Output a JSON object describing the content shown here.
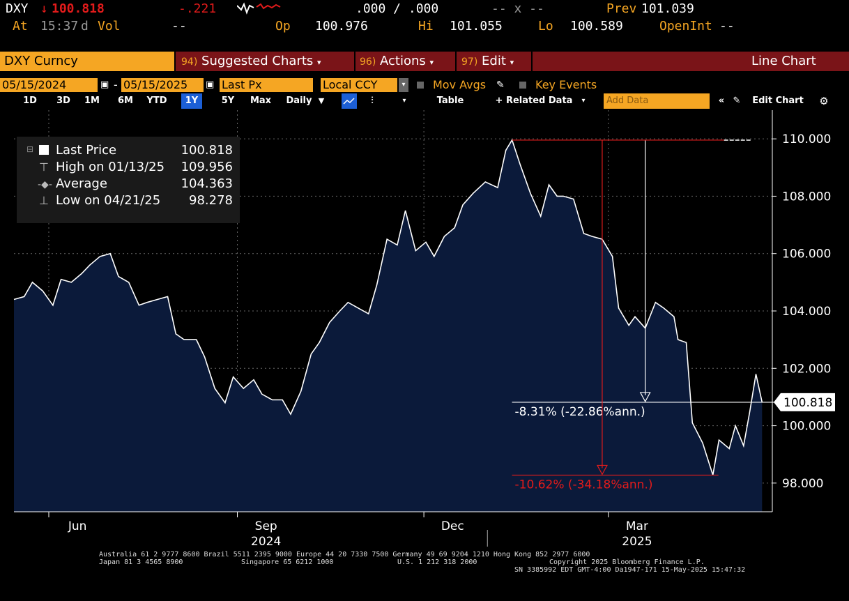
{
  "header": {
    "ticker": "DXY",
    "last_price": "100.818",
    "change": "-.221",
    "bid_ask": ".000 / .000",
    "bid_ask_size": "-- x --",
    "prev_label": "Prev",
    "prev_value": "101.039",
    "at_label": "At",
    "time": "15:37",
    "time_suffix": "d",
    "vol_label": "Vol",
    "vol_value": "--",
    "open_label": "Op",
    "open_value": "100.976",
    "hi_label": "Hi",
    "hi_value": "101.055",
    "lo_label": "Lo",
    "lo_value": "100.589",
    "openint_label": "OpenInt",
    "openint_value": "--"
  },
  "menubar": {
    "security": "DXY Curncy",
    "suggested_num": "94)",
    "suggested": "Suggested Charts",
    "actions_num": "96)",
    "actions": "Actions",
    "edit_num": "97)",
    "edit": "Edit",
    "chart_type": "Line Chart"
  },
  "settings": {
    "start_date": "05/15/2024",
    "date_sep": "-",
    "end_date": "05/15/2025",
    "field": "Last Px",
    "currency": "Local CCY",
    "mov_avgs": "Mov Avgs",
    "key_events": "Key Events"
  },
  "toolbar": {
    "ranges": [
      "1D",
      "3D",
      "1M",
      "6M",
      "YTD",
      "1Y",
      "5Y",
      "Max"
    ],
    "active_range": "1Y",
    "period": "Daily",
    "table": "Table",
    "related": "+ Related Data",
    "add_data_placeholder": "Add Data",
    "edit_chart": "Edit Chart"
  },
  "legend": {
    "last_label": "Last Price",
    "last_value": "100.818",
    "high_label": "High on 01/13/25",
    "high_value": "109.956",
    "avg_label": "Average",
    "avg_value": "104.363",
    "low_label": "Low on 04/21/25",
    "low_value": "98.278"
  },
  "annotations": {
    "white_pct": "-8.31% (-22.86%ann.)",
    "red_pct": "-10.62% (-34.18%ann.)"
  },
  "footer": {
    "line1": "Australia 61 2 9777 8600 Brazil 5511 2395 9000 Europe 44 20 7330 7500 Germany 49 69 9204 1210 Hong Kong 852 2977 6000",
    "line2a": "Japan 81 3 4565 8900",
    "line2b": "Singapore 65 6212 1000",
    "line2c": "U.S. 1 212 318 2000",
    "line2d": "Copyright 2025 Bloomberg Finance L.P.",
    "line3": "SN 3385992 EDT  GMT-4:00 Da1947-171 15-May-2025 15:47:32"
  },
  "chart_data": {
    "type": "area",
    "title": "",
    "ylim": [
      97,
      111
    ],
    "yticks": [
      98,
      100,
      102,
      104,
      106,
      108,
      110
    ],
    "ytick_labels": [
      "98.000",
      "100.000",
      "102.000",
      "104.000",
      "106.000",
      "108.000",
      "110.000"
    ],
    "xticks": [
      {
        "date": "2024-06-15",
        "label": "Jun"
      },
      {
        "date": "2024-09-15",
        "label": "Sep"
      },
      {
        "date": "2024-12-15",
        "label": "Dec"
      },
      {
        "date": "2025-03-15",
        "label": "Mar"
      }
    ],
    "year_labels": [
      {
        "date": "2024-09-15",
        "label": "2024"
      },
      {
        "date": "2025-03-15",
        "label": "2025"
      }
    ],
    "x_start": "2024-05-15",
    "x_end": "2025-05-20",
    "grid": true,
    "last_value_label": "100.818",
    "series": [
      {
        "name": "Last Price",
        "color": "#ffffff",
        "fill": "#0b1a3a",
        "points": [
          [
            "2024-05-15",
            104.4
          ],
          [
            "2024-05-20",
            104.5
          ],
          [
            "2024-05-24",
            105.0
          ],
          [
            "2024-05-29",
            104.7
          ],
          [
            "2024-06-03",
            104.2
          ],
          [
            "2024-06-07",
            105.1
          ],
          [
            "2024-06-12",
            105.0
          ],
          [
            "2024-06-17",
            105.3
          ],
          [
            "2024-06-21",
            105.6
          ],
          [
            "2024-06-26",
            105.9
          ],
          [
            "2024-07-01",
            106.0
          ],
          [
            "2024-07-05",
            105.2
          ],
          [
            "2024-07-10",
            105.0
          ],
          [
            "2024-07-15",
            104.2
          ],
          [
            "2024-07-19",
            104.3
          ],
          [
            "2024-07-24",
            104.4
          ],
          [
            "2024-07-29",
            104.5
          ],
          [
            "2024-08-02",
            103.2
          ],
          [
            "2024-08-06",
            103.0
          ],
          [
            "2024-08-12",
            103.0
          ],
          [
            "2024-08-16",
            102.4
          ],
          [
            "2024-08-21",
            101.3
          ],
          [
            "2024-08-26",
            100.8
          ],
          [
            "2024-08-30",
            101.7
          ],
          [
            "2024-09-04",
            101.3
          ],
          [
            "2024-09-09",
            101.6
          ],
          [
            "2024-09-13",
            101.1
          ],
          [
            "2024-09-18",
            100.9
          ],
          [
            "2024-09-23",
            100.9
          ],
          [
            "2024-09-27",
            100.4
          ],
          [
            "2024-10-02",
            101.2
          ],
          [
            "2024-10-07",
            102.5
          ],
          [
            "2024-10-11",
            102.9
          ],
          [
            "2024-10-16",
            103.6
          ],
          [
            "2024-10-21",
            104.0
          ],
          [
            "2024-10-25",
            104.3
          ],
          [
            "2024-10-30",
            104.1
          ],
          [
            "2024-11-04",
            103.9
          ],
          [
            "2024-11-08",
            104.9
          ],
          [
            "2024-11-13",
            106.5
          ],
          [
            "2024-11-18",
            106.3
          ],
          [
            "2024-11-22",
            107.5
          ],
          [
            "2024-11-27",
            106.1
          ],
          [
            "2024-12-02",
            106.4
          ],
          [
            "2024-12-06",
            105.9
          ],
          [
            "2024-12-11",
            106.6
          ],
          [
            "2024-12-16",
            106.9
          ],
          [
            "2024-12-20",
            107.7
          ],
          [
            "2024-12-25",
            108.1
          ],
          [
            "2024-12-31",
            108.5
          ],
          [
            "2025-01-06",
            108.3
          ],
          [
            "2025-01-10",
            109.6
          ],
          [
            "2025-01-13",
            109.96
          ],
          [
            "2025-01-17",
            109.1
          ],
          [
            "2025-01-22",
            108.1
          ],
          [
            "2025-01-27",
            107.3
          ],
          [
            "2025-01-31",
            108.4
          ],
          [
            "2025-02-04",
            108.0
          ],
          [
            "2025-02-07",
            108.0
          ],
          [
            "2025-02-12",
            107.9
          ],
          [
            "2025-02-17",
            106.7
          ],
          [
            "2025-02-21",
            106.6
          ],
          [
            "2025-02-26",
            106.5
          ],
          [
            "2025-03-03",
            105.9
          ],
          [
            "2025-03-06",
            104.1
          ],
          [
            "2025-03-11",
            103.5
          ],
          [
            "2025-03-14",
            103.8
          ],
          [
            "2025-03-19",
            103.4
          ],
          [
            "2025-03-24",
            104.3
          ],
          [
            "2025-03-28",
            104.1
          ],
          [
            "2025-04-02",
            103.8
          ],
          [
            "2025-04-04",
            103.0
          ],
          [
            "2025-04-08",
            102.9
          ],
          [
            "2025-04-11",
            100.1
          ],
          [
            "2025-04-16",
            99.4
          ],
          [
            "2025-04-21",
            98.28
          ],
          [
            "2025-04-24",
            99.5
          ],
          [
            "2025-04-29",
            99.2
          ],
          [
            "2025-05-02",
            100.0
          ],
          [
            "2025-05-06",
            99.3
          ],
          [
            "2025-05-09",
            100.5
          ],
          [
            "2025-05-12",
            101.8
          ],
          [
            "2025-05-15",
            100.818
          ]
        ]
      }
    ],
    "annotations": [
      {
        "type": "drop",
        "color": "#ffffff",
        "from_date": "2025-01-13",
        "from_value": 109.956,
        "to_date": "2025-05-15",
        "to_value": 100.818,
        "label": "-8.31% (-22.86%ann.)"
      },
      {
        "type": "drop",
        "color": "#e21b1b",
        "from_date": "2025-01-13",
        "from_value": 109.956,
        "to_date": "2025-04-21",
        "to_value": 98.278,
        "label": "-10.62% (-34.18%ann.)"
      }
    ]
  },
  "colors": {
    "accent": "#f5a623",
    "menubar": "#7a1418",
    "negative": "#e21b1b",
    "active_button": "#1c5fd6",
    "area": "#0b1a3a"
  }
}
